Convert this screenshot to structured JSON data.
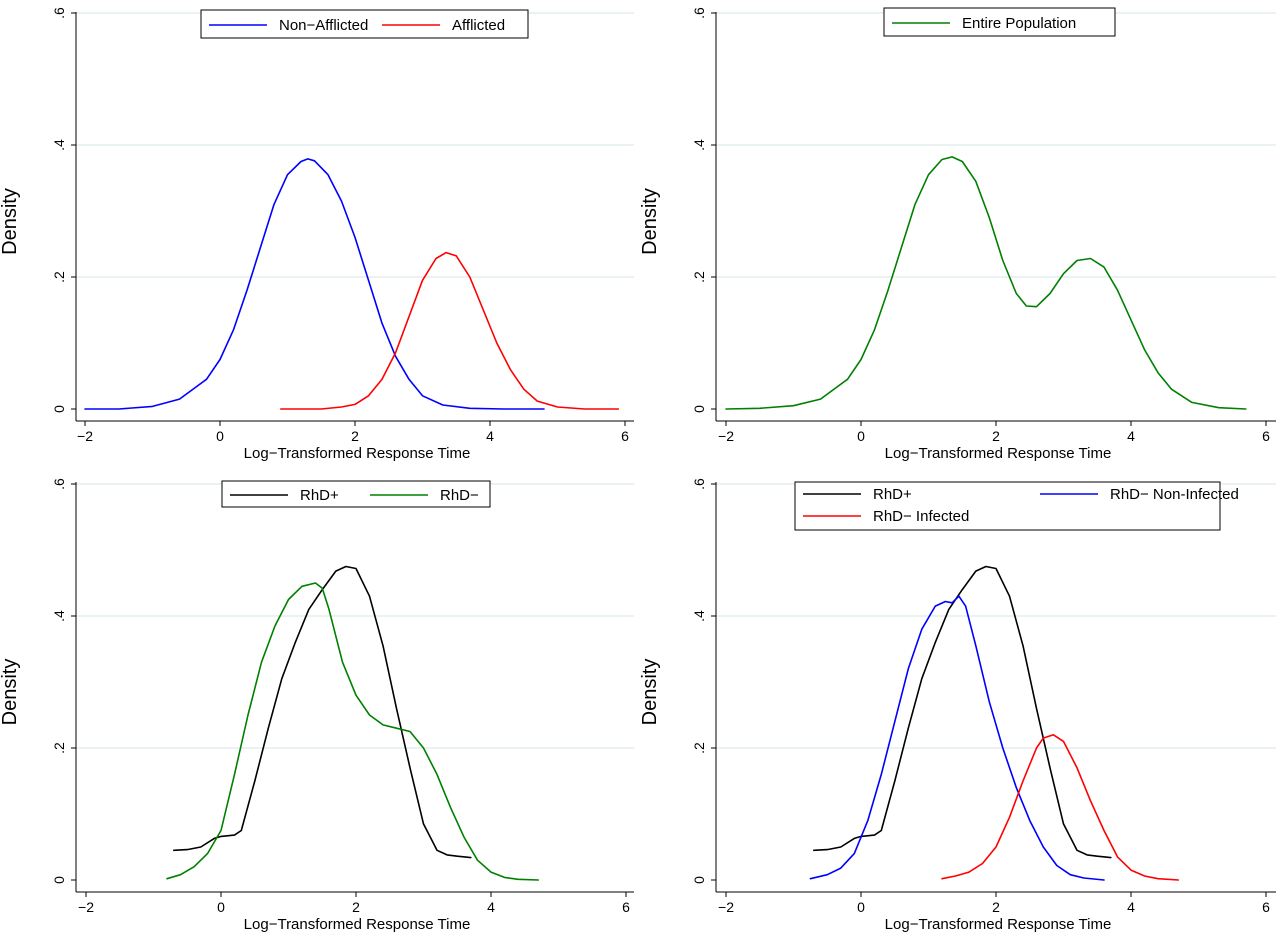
{
  "chart_data": [
    {
      "type": "line",
      "xlabel": "Log−Transformed Response Time",
      "ylabel": "Density",
      "xlim": [
        -2.2,
        6.1
      ],
      "ylim": [
        0,
        0.6
      ],
      "xticks": [
        -2,
        0,
        2,
        4,
        6
      ],
      "xtick_labels": [
        "−2",
        "0",
        "2",
        "4",
        "6"
      ],
      "yticks": [
        0,
        0.2,
        0.4,
        0.6
      ],
      "ytick_labels": [
        "0",
        ".2",
        ".4",
        ".6"
      ],
      "grid": true,
      "legend": {
        "position": "top-center",
        "columns": 2
      },
      "series": [
        {
          "name": "Non−Afflicted",
          "color": "#0000ff",
          "x": [
            -2.0,
            -1.5,
            -1.0,
            -0.6,
            -0.2,
            0.0,
            0.2,
            0.4,
            0.6,
            0.8,
            1.0,
            1.2,
            1.3,
            1.4,
            1.6,
            1.8,
            2.0,
            2.2,
            2.4,
            2.6,
            2.8,
            3.0,
            3.3,
            3.7,
            4.2,
            4.8
          ],
          "y": [
            0.0,
            0.0,
            0.004,
            0.015,
            0.045,
            0.075,
            0.12,
            0.18,
            0.245,
            0.31,
            0.355,
            0.375,
            0.379,
            0.376,
            0.355,
            0.315,
            0.26,
            0.195,
            0.13,
            0.08,
            0.045,
            0.02,
            0.006,
            0.001,
            0.0,
            0.0
          ]
        },
        {
          "name": "Afflicted",
          "color": "#ff0000",
          "x": [
            0.9,
            1.5,
            1.8,
            2.0,
            2.2,
            2.4,
            2.6,
            2.8,
            3.0,
            3.2,
            3.35,
            3.5,
            3.7,
            3.9,
            4.1,
            4.3,
            4.5,
            4.7,
            5.0,
            5.4,
            5.9
          ],
          "y": [
            0.0,
            0.0,
            0.003,
            0.007,
            0.02,
            0.045,
            0.085,
            0.14,
            0.195,
            0.228,
            0.237,
            0.232,
            0.2,
            0.15,
            0.1,
            0.06,
            0.03,
            0.012,
            0.003,
            0.0,
            0.0
          ]
        }
      ]
    },
    {
      "type": "line",
      "xlabel": "Log−Transformed Response Time",
      "ylabel": "Density",
      "xlim": [
        -2.2,
        6.1
      ],
      "ylim": [
        0,
        0.6
      ],
      "xticks": [
        -2,
        0,
        2,
        4,
        6
      ],
      "xtick_labels": [
        "−2",
        "0",
        "2",
        "4",
        "6"
      ],
      "yticks": [
        0,
        0.2,
        0.4,
        0.6
      ],
      "ytick_labels": [
        "0",
        ".2",
        ".4",
        ".6"
      ],
      "grid": true,
      "legend": {
        "position": "top-center",
        "columns": 1
      },
      "series": [
        {
          "name": "Entire Population",
          "color": "#008000",
          "x": [
            -2.0,
            -1.5,
            -1.0,
            -0.6,
            -0.2,
            0.0,
            0.2,
            0.4,
            0.6,
            0.8,
            1.0,
            1.2,
            1.35,
            1.5,
            1.7,
            1.9,
            2.1,
            2.3,
            2.45,
            2.6,
            2.8,
            3.0,
            3.2,
            3.4,
            3.6,
            3.8,
            4.0,
            4.2,
            4.4,
            4.6,
            4.9,
            5.3,
            5.7
          ],
          "y": [
            0.0,
            0.001,
            0.005,
            0.015,
            0.045,
            0.075,
            0.12,
            0.18,
            0.245,
            0.31,
            0.355,
            0.378,
            0.382,
            0.375,
            0.345,
            0.29,
            0.225,
            0.175,
            0.156,
            0.155,
            0.175,
            0.205,
            0.225,
            0.228,
            0.215,
            0.18,
            0.135,
            0.09,
            0.055,
            0.03,
            0.01,
            0.002,
            0.0
          ]
        }
      ]
    },
    {
      "type": "line",
      "xlabel": "Log−Transformed Response Time",
      "ylabel": "Density",
      "xlim": [
        -2.2,
        6.1
      ],
      "ylim": [
        0,
        0.6
      ],
      "xticks": [
        -2,
        0,
        2,
        4,
        6
      ],
      "xtick_labels": [
        "−2",
        "0",
        "2",
        "4",
        "6"
      ],
      "yticks": [
        0,
        0.2,
        0.4,
        0.6
      ],
      "ytick_labels": [
        "0",
        ".2",
        ".4",
        ".6"
      ],
      "grid": true,
      "legend": {
        "position": "top-center",
        "columns": 2
      },
      "series": [
        {
          "name": "RhD+",
          "color": "#000000",
          "x": [
            -0.7,
            -0.5,
            -0.3,
            -0.1,
            0.0,
            0.2,
            0.3,
            0.5,
            0.7,
            0.9,
            1.1,
            1.3,
            1.5,
            1.7,
            1.85,
            2.0,
            2.2,
            2.4,
            2.6,
            2.8,
            3.0,
            3.2,
            3.35,
            3.5,
            3.7
          ],
          "y": [
            0.045,
            0.046,
            0.05,
            0.063,
            0.066,
            0.068,
            0.075,
            0.15,
            0.23,
            0.305,
            0.36,
            0.41,
            0.44,
            0.468,
            0.475,
            0.472,
            0.43,
            0.355,
            0.26,
            0.17,
            0.085,
            0.045,
            0.038,
            0.036,
            0.034
          ]
        },
        {
          "name": "RhD−",
          "color": "#008000",
          "x": [
            -0.8,
            -0.6,
            -0.4,
            -0.2,
            0.0,
            0.2,
            0.4,
            0.6,
            0.8,
            1.0,
            1.2,
            1.4,
            1.5,
            1.6,
            1.8,
            2.0,
            2.2,
            2.4,
            2.6,
            2.8,
            3.0,
            3.2,
            3.4,
            3.6,
            3.8,
            4.0,
            4.2,
            4.4,
            4.7
          ],
          "y": [
            0.002,
            0.008,
            0.02,
            0.04,
            0.075,
            0.16,
            0.25,
            0.33,
            0.385,
            0.425,
            0.445,
            0.45,
            0.442,
            0.41,
            0.33,
            0.28,
            0.25,
            0.235,
            0.23,
            0.225,
            0.2,
            0.16,
            0.11,
            0.065,
            0.03,
            0.012,
            0.004,
            0.001,
            0.0
          ]
        }
      ]
    },
    {
      "type": "line",
      "xlabel": "Log−Transformed Response Time",
      "ylabel": "Density",
      "xlim": [
        -2.2,
        6.1
      ],
      "ylim": [
        0,
        0.6
      ],
      "xticks": [
        -2,
        0,
        2,
        4,
        6
      ],
      "xtick_labels": [
        "−2",
        "0",
        "2",
        "4",
        "6"
      ],
      "yticks": [
        0,
        0.2,
        0.4,
        0.6
      ],
      "ytick_labels": [
        "0",
        ".2",
        ".4",
        ".6"
      ],
      "grid": true,
      "legend": {
        "position": "top-center",
        "columns": 2
      },
      "series": [
        {
          "name": "RhD+",
          "color": "#000000",
          "x": [
            -0.7,
            -0.5,
            -0.3,
            -0.1,
            0.0,
            0.2,
            0.3,
            0.5,
            0.7,
            0.9,
            1.1,
            1.3,
            1.5,
            1.7,
            1.85,
            2.0,
            2.2,
            2.4,
            2.6,
            2.8,
            3.0,
            3.2,
            3.35,
            3.5,
            3.7
          ],
          "y": [
            0.045,
            0.046,
            0.05,
            0.063,
            0.066,
            0.068,
            0.075,
            0.15,
            0.23,
            0.305,
            0.36,
            0.41,
            0.44,
            0.468,
            0.475,
            0.472,
            0.43,
            0.355,
            0.26,
            0.17,
            0.085,
            0.045,
            0.038,
            0.036,
            0.034
          ]
        },
        {
          "name": "RhD−  Non-Infected",
          "color": "#0000ff",
          "x": [
            -0.75,
            -0.5,
            -0.3,
            -0.1,
            0.1,
            0.3,
            0.5,
            0.7,
            0.9,
            1.1,
            1.25,
            1.35,
            1.45,
            1.55,
            1.7,
            1.9,
            2.1,
            2.3,
            2.5,
            2.7,
            2.9,
            3.1,
            3.3,
            3.6
          ],
          "y": [
            0.002,
            0.008,
            0.018,
            0.04,
            0.09,
            0.16,
            0.24,
            0.32,
            0.38,
            0.415,
            0.422,
            0.42,
            0.43,
            0.415,
            0.355,
            0.27,
            0.2,
            0.14,
            0.09,
            0.05,
            0.022,
            0.008,
            0.003,
            0.0
          ]
        },
        {
          "name": "RhD−  Infected",
          "color": "#ff0000",
          "x": [
            1.2,
            1.4,
            1.6,
            1.8,
            2.0,
            2.2,
            2.4,
            2.6,
            2.7,
            2.85,
            3.0,
            3.2,
            3.4,
            3.6,
            3.8,
            4.0,
            4.2,
            4.4,
            4.7
          ],
          "y": [
            0.002,
            0.006,
            0.012,
            0.025,
            0.05,
            0.095,
            0.15,
            0.2,
            0.215,
            0.22,
            0.21,
            0.17,
            0.12,
            0.075,
            0.035,
            0.015,
            0.006,
            0.002,
            0.0
          ]
        }
      ]
    }
  ]
}
